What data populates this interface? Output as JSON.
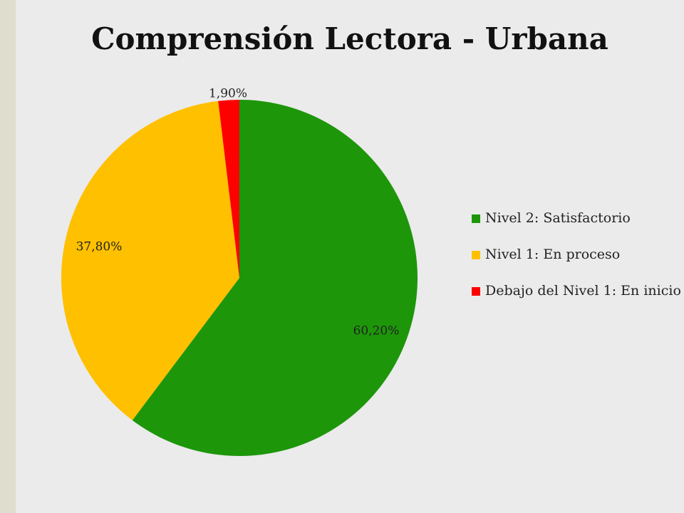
{
  "chart_data": {
    "type": "pie",
    "title": "Comprensión Lectora - Urbana",
    "start_angle_deg": 0,
    "direction": "clockwise",
    "legend_position": "right",
    "slices": [
      {
        "label": "Nivel 2: Satisfactorio",
        "value": 60.2,
        "display": "60,20%",
        "color": "#1d960a"
      },
      {
        "label": "Nivel 1: En proceso",
        "value": 37.8,
        "display": "37,80%",
        "color": "#ffc000"
      },
      {
        "label": "Debajo del Nivel 1: En inicio",
        "value": 1.9,
        "display": "1,90%",
        "color": "#ff0000"
      }
    ]
  }
}
